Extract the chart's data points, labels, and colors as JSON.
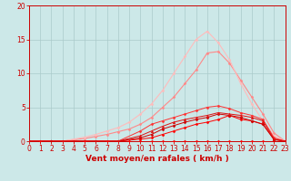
{
  "xlabel": "Vent moyen/en rafales ( km/h )",
  "x_ticks": [
    0,
    1,
    2,
    3,
    4,
    5,
    6,
    7,
    8,
    9,
    10,
    11,
    12,
    13,
    14,
    15,
    16,
    17,
    18,
    19,
    20,
    21,
    22,
    23
  ],
  "ylim": [
    0,
    20
  ],
  "y_ticks": [
    0,
    5,
    10,
    15,
    20
  ],
  "xlim": [
    0,
    23
  ],
  "bg_color": "#cce8e8",
  "grid_color": "#aacaca",
  "series": [
    {
      "x": [
        0,
        1,
        2,
        3,
        4,
        5,
        6,
        7,
        8,
        9,
        10,
        11,
        12,
        13,
        14,
        15,
        16,
        17,
        18,
        19,
        20,
        21,
        22,
        23
      ],
      "y": [
        0,
        0,
        0,
        0,
        0,
        0,
        0,
        0,
        0,
        0,
        0,
        0,
        0,
        0,
        0,
        0,
        0,
        0,
        0,
        0,
        0,
        0,
        0,
        0
      ],
      "color": "#ff0000",
      "lw": 0.7,
      "marker": "D",
      "ms": 1.5,
      "zorder": 3
    },
    {
      "x": [
        0,
        2,
        5,
        8,
        10,
        11,
        12,
        13,
        14,
        15,
        16,
        17,
        18,
        19,
        20,
        21,
        22,
        23
      ],
      "y": [
        0,
        0,
        0,
        0,
        0.3,
        0.5,
        1.0,
        1.5,
        2.0,
        2.5,
        2.8,
        3.2,
        3.8,
        3.2,
        3.0,
        2.5,
        0.3,
        0
      ],
      "color": "#ff0000",
      "lw": 0.7,
      "marker": "D",
      "ms": 1.5,
      "zorder": 4
    },
    {
      "x": [
        0,
        2,
        4,
        6,
        8,
        10,
        11,
        12,
        13,
        14,
        15,
        16,
        17,
        18,
        19,
        20,
        21,
        22,
        23
      ],
      "y": [
        0,
        0,
        0,
        0,
        0,
        0.5,
        1.0,
        1.8,
        2.3,
        2.8,
        3.2,
        3.5,
        4.0,
        3.8,
        3.5,
        3.0,
        2.5,
        0.2,
        0
      ],
      "color": "#cc0000",
      "lw": 0.7,
      "marker": "D",
      "ms": 1.5,
      "zorder": 4
    },
    {
      "x": [
        0,
        3,
        6,
        8,
        10,
        11,
        12,
        13,
        14,
        15,
        16,
        17,
        18,
        19,
        20,
        21,
        22,
        23
      ],
      "y": [
        0,
        0,
        0,
        0,
        0.8,
        1.5,
        2.2,
        2.8,
        3.2,
        3.5,
        3.8,
        4.2,
        4.0,
        3.8,
        3.5,
        3.0,
        0.3,
        0
      ],
      "color": "#dd1111",
      "lw": 0.7,
      "marker": "^",
      "ms": 2.0,
      "zorder": 4
    },
    {
      "x": [
        0,
        2,
        5,
        8,
        10,
        11,
        12,
        13,
        14,
        15,
        16,
        17,
        18,
        19,
        20,
        21,
        22,
        23
      ],
      "y": [
        0,
        0,
        0,
        0,
        1.5,
        2.5,
        3.0,
        3.5,
        4.0,
        4.5,
        5.0,
        5.2,
        4.8,
        4.2,
        3.8,
        3.2,
        0.5,
        0
      ],
      "color": "#ff3333",
      "lw": 0.7,
      "marker": "D",
      "ms": 1.5,
      "zorder": 3
    },
    {
      "x": [
        0,
        1,
        2,
        3,
        4,
        5,
        6,
        7,
        8,
        9,
        10,
        11,
        12,
        13,
        14,
        15,
        16,
        17,
        18,
        19,
        20,
        21,
        22,
        23
      ],
      "y": [
        0,
        0,
        0,
        0,
        0.2,
        0.4,
        0.7,
        1.0,
        1.4,
        1.8,
        2.5,
        3.5,
        5.0,
        6.5,
        8.5,
        10.5,
        13.0,
        13.2,
        11.5,
        9.0,
        6.5,
        4.0,
        1.2,
        0
      ],
      "color": "#ff8888",
      "lw": 0.8,
      "marker": "D",
      "ms": 1.5,
      "zorder": 2
    },
    {
      "x": [
        0,
        1,
        2,
        3,
        4,
        5,
        6,
        7,
        8,
        9,
        10,
        11,
        12,
        13,
        14,
        15,
        16,
        17,
        18,
        19,
        20,
        21,
        22,
        23
      ],
      "y": [
        0,
        0,
        0,
        0,
        0.3,
        0.6,
        1.0,
        1.5,
        2.0,
        2.8,
        4.0,
        5.5,
        7.5,
        10.0,
        12.5,
        15.0,
        16.2,
        14.5,
        12.0,
        8.5,
        5.5,
        3.0,
        0.8,
        0
      ],
      "color": "#ffbbbb",
      "lw": 0.8,
      "marker": "D",
      "ms": 1.5,
      "zorder": 2
    }
  ],
  "tick_fontsize": 5.5,
  "axis_label_fontsize": 6.5
}
